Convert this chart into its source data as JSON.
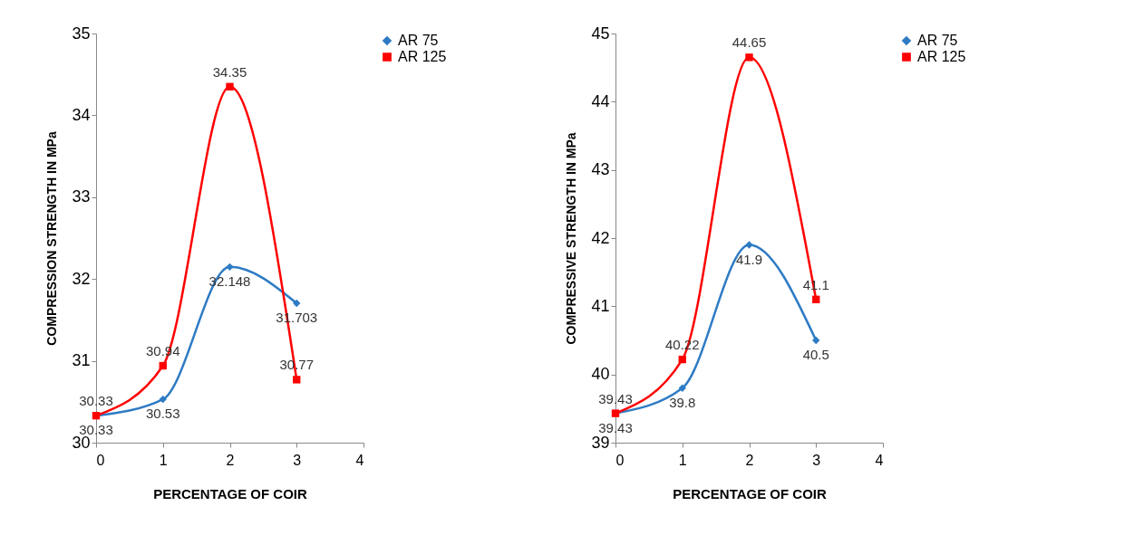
{
  "chart_data": [
    {
      "type": "line",
      "xlabel": "PERCENTAGE OF COIR",
      "ylabel": "COMPRESSION STRENGTH IN  MPa",
      "x": [
        0,
        1,
        2,
        3
      ],
      "xlim": [
        0,
        4
      ],
      "xticks": [
        0,
        1,
        2,
        3,
        4
      ],
      "ylim": [
        30,
        35
      ],
      "yticks": [
        30,
        31,
        32,
        33,
        34,
        35
      ],
      "grid": false,
      "legend": "right",
      "data_labels": true,
      "series": [
        {
          "name": "AR 75",
          "color": "#2e7bc4",
          "marker": "diamond",
          "values": [
            30.33,
            30.53,
            32.148,
            31.703
          ]
        },
        {
          "name": "AR 125",
          "color": "#ff0000",
          "marker": "square",
          "values": [
            30.33,
            30.94,
            34.35,
            30.77
          ]
        }
      ]
    },
    {
      "type": "line",
      "xlabel": "PERCENTAGE OF COIR",
      "ylabel": "COMPRESSIVE STRENGTH IN MPa",
      "x": [
        0,
        1,
        2,
        3
      ],
      "xlim": [
        0,
        4
      ],
      "xticks": [
        0,
        1,
        2,
        3,
        4
      ],
      "ylim": [
        39,
        45
      ],
      "yticks": [
        39,
        40,
        41,
        42,
        43,
        44,
        45
      ],
      "grid": false,
      "legend": "right",
      "data_labels": true,
      "series": [
        {
          "name": "AR 75",
          "color": "#2e7bc4",
          "marker": "diamond",
          "values": [
            39.43,
            39.8,
            41.9,
            40.5
          ]
        },
        {
          "name": "AR 125",
          "color": "#ff0000",
          "marker": "square",
          "values": [
            39.43,
            40.22,
            44.65,
            41.1
          ]
        }
      ]
    }
  ]
}
